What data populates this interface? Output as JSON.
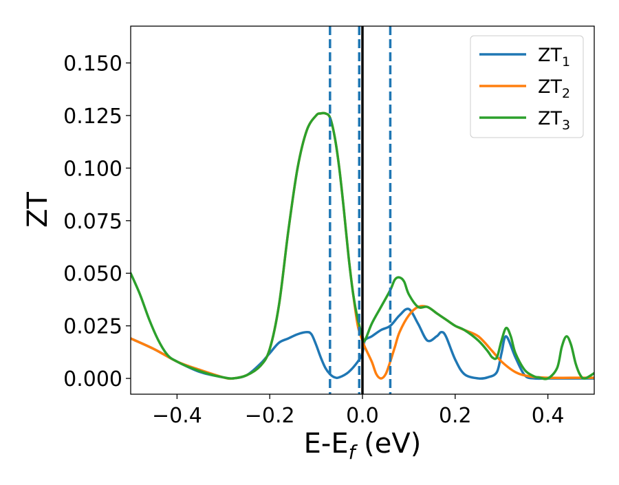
{
  "chart_data": {
    "type": "line",
    "title": "",
    "xlabel": "E-E",
    "xlabel_subscript": "f",
    "xlabel_unit": " (eV)",
    "ylabel": "ZT",
    "xlim": [
      -0.5,
      0.5
    ],
    "ylim": [
      -0.0075,
      0.1675
    ],
    "x_ticks": [
      -0.4,
      -0.2,
      0.0,
      0.2,
      0.4
    ],
    "x_tick_labels": [
      "−0.4",
      "−0.2",
      "0.0",
      "0.2",
      "0.4"
    ],
    "y_ticks": [
      0.0,
      0.025,
      0.05,
      0.075,
      0.1,
      0.125,
      0.15
    ],
    "y_tick_labels": [
      "0.000",
      "0.025",
      "0.050",
      "0.075",
      "0.100",
      "0.125",
      "0.150"
    ],
    "grid": false,
    "legend_position": "top-right",
    "vertical_lines": [
      {
        "x": -0.07,
        "style": "dashed",
        "color": "#1f77b4"
      },
      {
        "x": -0.007,
        "style": "dashed",
        "color": "#1f77b4"
      },
      {
        "x": 0.0,
        "style": "solid",
        "color": "#000000"
      },
      {
        "x": 0.06,
        "style": "dashed",
        "color": "#1f77b4"
      }
    ],
    "series": [
      {
        "name": "ZT",
        "name_subscript": "1",
        "color": "#1f77b4",
        "x": [
          -0.5,
          -0.45,
          -0.4,
          -0.35,
          -0.3,
          -0.28,
          -0.25,
          -0.22,
          -0.2,
          -0.18,
          -0.16,
          -0.14,
          -0.12,
          -0.11,
          -0.1,
          -0.09,
          -0.08,
          -0.07,
          -0.06,
          -0.05,
          -0.03,
          -0.01,
          0.0,
          0.005,
          0.02,
          0.04,
          0.06,
          0.08,
          0.1,
          0.12,
          0.14,
          0.16,
          0.17,
          0.18,
          0.2,
          0.22,
          0.25,
          0.27,
          0.29,
          0.3,
          0.31,
          0.33,
          0.35,
          0.37,
          0.4,
          0.45,
          0.5
        ],
        "y": [
          0.019,
          0.014,
          0.008,
          0.003,
          0.0005,
          0.0,
          0.0015,
          0.007,
          0.012,
          0.017,
          0.019,
          0.021,
          0.022,
          0.021,
          0.016,
          0.01,
          0.005,
          0.002,
          0.0005,
          0.0005,
          0.003,
          0.008,
          0.012,
          0.018,
          0.02,
          0.023,
          0.025,
          0.03,
          0.033,
          0.026,
          0.018,
          0.02,
          0.022,
          0.02,
          0.009,
          0.002,
          0.0,
          0.0005,
          0.003,
          0.012,
          0.02,
          0.01,
          0.0015,
          0.0,
          0.0,
          0.0,
          0.0
        ]
      },
      {
        "name": "ZT",
        "name_subscript": "2",
        "color": "#ff7f0e",
        "x": [
          -0.5,
          -0.45,
          -0.4,
          -0.35,
          -0.3,
          -0.28,
          -0.25,
          -0.22,
          -0.2,
          -0.18,
          -0.16,
          -0.14,
          -0.12,
          -0.1,
          -0.09,
          -0.08,
          -0.07,
          -0.06,
          -0.05,
          -0.04,
          -0.03,
          -0.02,
          -0.01,
          0.0,
          0.005,
          0.02,
          0.03,
          0.04,
          0.05,
          0.06,
          0.07,
          0.08,
          0.1,
          0.12,
          0.14,
          0.16,
          0.18,
          0.2,
          0.22,
          0.25,
          0.28,
          0.3,
          0.33,
          0.36,
          0.4,
          0.45,
          0.5
        ],
        "y": [
          0.019,
          0.014,
          0.008,
          0.004,
          0.0005,
          0.0,
          0.0015,
          0.006,
          0.014,
          0.035,
          0.07,
          0.1,
          0.118,
          0.125,
          0.126,
          0.126,
          0.124,
          0.115,
          0.1,
          0.08,
          0.058,
          0.04,
          0.025,
          0.018,
          0.015,
          0.008,
          0.002,
          0.0,
          0.002,
          0.008,
          0.015,
          0.022,
          0.03,
          0.034,
          0.034,
          0.031,
          0.028,
          0.025,
          0.023,
          0.02,
          0.013,
          0.008,
          0.003,
          0.001,
          0.0003,
          0.0003,
          0.0003
        ]
      },
      {
        "name": "ZT",
        "name_subscript": "3",
        "color": "#2ca02c",
        "x": [
          -0.5,
          -0.48,
          -0.46,
          -0.44,
          -0.42,
          -0.4,
          -0.37,
          -0.33,
          -0.3,
          -0.28,
          -0.25,
          -0.22,
          -0.2,
          -0.18,
          -0.16,
          -0.14,
          -0.12,
          -0.1,
          -0.09,
          -0.08,
          -0.07,
          -0.06,
          -0.05,
          -0.04,
          -0.03,
          -0.02,
          -0.01,
          0.0,
          0.005,
          0.02,
          0.04,
          0.06,
          0.07,
          0.08,
          0.09,
          0.1,
          0.12,
          0.14,
          0.16,
          0.18,
          0.2,
          0.22,
          0.25,
          0.27,
          0.28,
          0.29,
          0.3,
          0.31,
          0.32,
          0.33,
          0.35,
          0.37,
          0.38,
          0.4,
          0.42,
          0.43,
          0.44,
          0.45,
          0.46,
          0.47,
          0.48,
          0.5
        ],
        "y": [
          0.05,
          0.04,
          0.028,
          0.018,
          0.011,
          0.008,
          0.005,
          0.002,
          0.0005,
          0.0,
          0.0015,
          0.006,
          0.014,
          0.035,
          0.07,
          0.1,
          0.118,
          0.125,
          0.126,
          0.126,
          0.124,
          0.115,
          0.1,
          0.08,
          0.058,
          0.04,
          0.028,
          0.02,
          0.018,
          0.026,
          0.034,
          0.042,
          0.047,
          0.048,
          0.046,
          0.04,
          0.034,
          0.034,
          0.031,
          0.028,
          0.025,
          0.023,
          0.018,
          0.013,
          0.01,
          0.01,
          0.018,
          0.024,
          0.02,
          0.012,
          0.004,
          0.001,
          0.0005,
          0.0,
          0.005,
          0.015,
          0.02,
          0.016,
          0.007,
          0.0015,
          0.0,
          0.0025
        ]
      }
    ]
  }
}
